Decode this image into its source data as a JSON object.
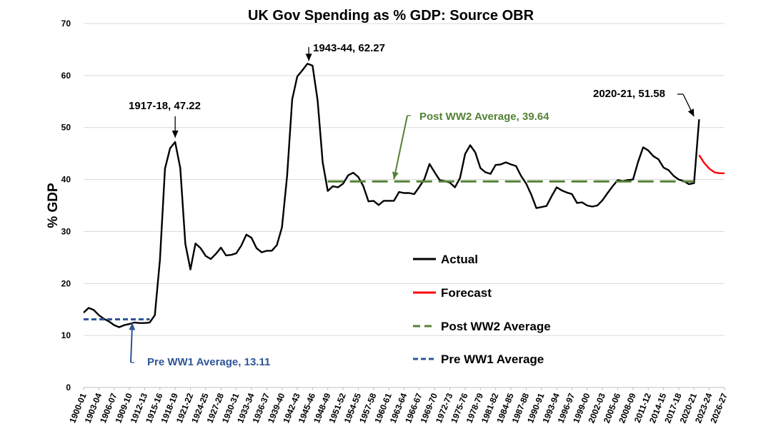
{
  "chart_data": {
    "type": "line",
    "title": "UK Gov Spending as % GDP: Source OBR",
    "xlabel": "",
    "ylabel": "% GDP",
    "ylim": [
      0,
      70
    ],
    "yticks": [
      0,
      10,
      20,
      30,
      40,
      50,
      60,
      70
    ],
    "grid": "horizontal",
    "legend_position": "center-right",
    "x_start_year": 1900,
    "x_end_year": 2026,
    "x_tick_labels": [
      "1900-01",
      "1903-04",
      "1906-07",
      "1909-10",
      "1912-13",
      "1915-16",
      "1918-19",
      "1921-22",
      "1924-25",
      "1927-28",
      "1930-31",
      "1933-34",
      "1936-37",
      "1939-40",
      "1942-43",
      "1945-46",
      "1948-49",
      "1951-52",
      "1954-55",
      "1957-58",
      "1960-61",
      "1963-64",
      "1966-67",
      "1969-70",
      "1972-73",
      "1975-76",
      "1978-79",
      "1981-82",
      "1984-85",
      "1987-88",
      "1990-91",
      "1993-94",
      "1996-97",
      "1999-00",
      "2002-03",
      "2005-06",
      "2008-09",
      "2011-12",
      "2014-15",
      "2017-18",
      "2020-21",
      "2023-24",
      "2026-27"
    ],
    "series": [
      {
        "name": "Actual",
        "color": "#000000",
        "style": "solid",
        "start_year": 1900,
        "values": [
          14.4,
          15.3,
          14.9,
          13.9,
          13.2,
          12.7,
          12.0,
          11.6,
          12.0,
          12.2,
          12.5,
          12.4,
          12.4,
          12.5,
          13.9,
          24.5,
          42.1,
          46.0,
          47.22,
          42.2,
          27.6,
          22.7,
          27.7,
          26.8,
          25.3,
          24.7,
          25.7,
          26.9,
          25.4,
          25.5,
          25.8,
          27.3,
          29.4,
          28.8,
          26.8,
          26.0,
          26.3,
          26.3,
          27.4,
          30.8,
          40.7,
          55.4,
          59.8,
          61.0,
          62.27,
          61.9,
          55.2,
          43.3,
          37.8,
          38.7,
          38.5,
          39.2,
          40.8,
          41.3,
          40.5,
          38.7,
          35.8,
          35.9,
          35.1,
          35.9,
          35.9,
          35.9,
          37.6,
          37.4,
          37.4,
          37.2,
          38.6,
          40.1,
          43.0,
          41.4,
          39.9,
          39.7,
          39.4,
          38.5,
          40.3,
          44.9,
          46.6,
          45.2,
          42.2,
          41.4,
          41.1,
          42.8,
          42.9,
          43.3,
          42.9,
          42.6,
          40.7,
          39.2,
          37.1,
          34.5,
          34.7,
          34.9,
          36.8,
          38.5,
          37.9,
          37.5,
          37.2,
          35.5,
          35.6,
          35.0,
          34.8,
          35.0,
          36.0,
          37.4,
          38.7,
          39.9,
          39.7,
          39.9,
          40.0,
          43.4,
          46.2,
          45.6,
          44.5,
          43.9,
          42.3,
          41.8,
          40.7,
          40.0,
          39.7,
          39.1,
          39.3,
          51.58
        ]
      },
      {
        "name": "Forecast",
        "color": "#ff0000",
        "style": "solid",
        "start_year": 2021,
        "values": [
          44.7,
          43.2,
          42.1,
          41.4,
          41.2,
          41.2
        ]
      },
      {
        "name": "Post WW2 Average",
        "color": "#548235",
        "style": "dashed",
        "x_range": [
          1948,
          2020
        ],
        "value": 39.64
      },
      {
        "name": "Pre WW1 Average",
        "color": "#2f5597",
        "style": "dashed",
        "x_range": [
          1900,
          1913
        ],
        "value": 13.11
      }
    ],
    "annotations": [
      {
        "text": "1917-18, 47.22",
        "year": 1918,
        "value": 47.22,
        "color": "#000000"
      },
      {
        "text": "1943-44, 62.27",
        "year": 1944,
        "value": 62.27,
        "color": "#000000"
      },
      {
        "text": "2020-21, 51.58",
        "year": 2020,
        "value": 51.58,
        "color": "#000000"
      },
      {
        "text": "Post WW2 Average, 39.64",
        "year": 1961,
        "value": 39.64,
        "color": "#548235"
      },
      {
        "text": "Pre WW1 Average, 13.11",
        "year": 1910,
        "value": 13.11,
        "color": "#2f5597"
      }
    ]
  }
}
